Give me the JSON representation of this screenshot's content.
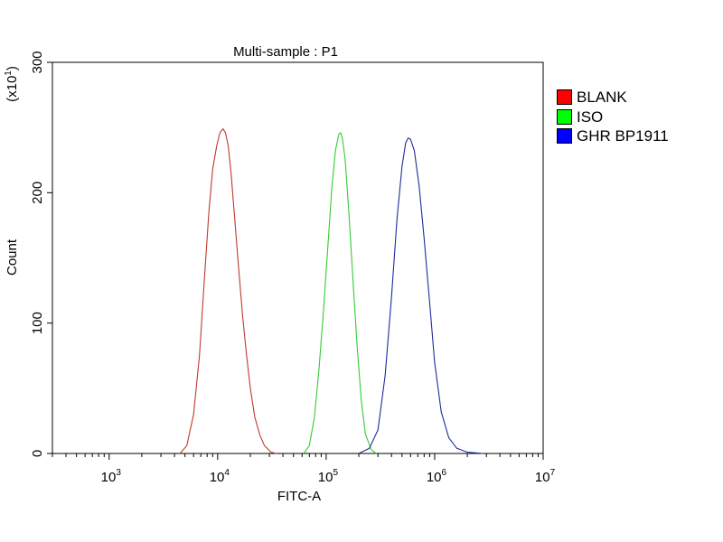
{
  "chart_data": {
    "type": "line",
    "title": "Multi-sample : P1",
    "xlabel": "FITC-A",
    "ylabel": "Count",
    "y_multiplier_label": "(x10",
    "y_multiplier_exp": "1",
    "y_multiplier_close": ")",
    "x_scale": "log",
    "xlim": [
      300,
      10000000
    ],
    "ylim": [
      0,
      300
    ],
    "x_ticks": [
      {
        "base": "10",
        "exp": "3",
        "value": 1000
      },
      {
        "base": "10",
        "exp": "4",
        "value": 10000
      },
      {
        "base": "10",
        "exp": "5",
        "value": 100000
      },
      {
        "base": "10",
        "exp": "6",
        "value": 1000000
      },
      {
        "base": "10",
        "exp": "7",
        "value": 10000000
      }
    ],
    "y_ticks": [
      {
        "label": "0",
        "value": 0
      },
      {
        "label": "100",
        "value": 100
      },
      {
        "label": "200",
        "value": 200
      },
      {
        "label": "300",
        "value": 300
      }
    ],
    "grid": false,
    "legend_position": "right",
    "series": [
      {
        "name": "BLANK",
        "color": "#c0392b",
        "swatch": "#ff0000",
        "points": [
          [
            4500,
            0
          ],
          [
            5200,
            6
          ],
          [
            6000,
            30
          ],
          [
            6800,
            75
          ],
          [
            7500,
            130
          ],
          [
            8300,
            185
          ],
          [
            9000,
            218
          ],
          [
            9800,
            236
          ],
          [
            10500,
            246
          ],
          [
            11200,
            249
          ],
          [
            11800,
            246
          ],
          [
            12500,
            236
          ],
          [
            13300,
            215
          ],
          [
            14300,
            182
          ],
          [
            15500,
            145
          ],
          [
            17000,
            105
          ],
          [
            18500,
            75
          ],
          [
            20000,
            50
          ],
          [
            22000,
            28
          ],
          [
            24500,
            14
          ],
          [
            27000,
            6
          ],
          [
            31000,
            1
          ],
          [
            35000,
            0
          ]
        ]
      },
      {
        "name": "ISO",
        "color": "#33cc33",
        "swatch": "#00ff00",
        "points": [
          [
            62000,
            0
          ],
          [
            70000,
            6
          ],
          [
            78000,
            28
          ],
          [
            86000,
            65
          ],
          [
            95000,
            112
          ],
          [
            104000,
            160
          ],
          [
            113000,
            205
          ],
          [
            122000,
            233
          ],
          [
            131000,
            245
          ],
          [
            136000,
            246
          ],
          [
            141000,
            242
          ],
          [
            150000,
            225
          ],
          [
            162000,
            185
          ],
          [
            176000,
            135
          ],
          [
            192000,
            85
          ],
          [
            210000,
            42
          ],
          [
            230000,
            15
          ],
          [
            260000,
            3
          ],
          [
            290000,
            0
          ]
        ]
      },
      {
        "name": "GHR BP1911",
        "color": "#1f2a9e",
        "swatch": "#0000ff",
        "points": [
          [
            200000,
            0
          ],
          [
            250000,
            4
          ],
          [
            300000,
            18
          ],
          [
            350000,
            60
          ],
          [
            400000,
            120
          ],
          [
            450000,
            180
          ],
          [
            500000,
            220
          ],
          [
            540000,
            238
          ],
          [
            570000,
            242
          ],
          [
            600000,
            241
          ],
          [
            650000,
            232
          ],
          [
            720000,
            205
          ],
          [
            800000,
            165
          ],
          [
            900000,
            115
          ],
          [
            1000000,
            70
          ],
          [
            1150000,
            32
          ],
          [
            1350000,
            12
          ],
          [
            1600000,
            4
          ],
          [
            2000000,
            1
          ],
          [
            2800000,
            0
          ]
        ]
      }
    ]
  }
}
